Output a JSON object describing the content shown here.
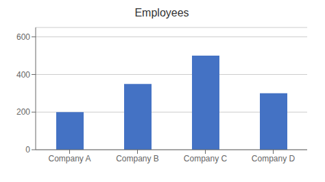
{
  "chart_data": {
    "type": "bar",
    "title": "Employees",
    "categories": [
      "Company A",
      "Company B",
      "Company C",
      "Company D"
    ],
    "values": [
      200,
      350,
      500,
      300
    ],
    "color": "#4472C4",
    "ylim": [
      0,
      650
    ],
    "yticks": [
      0,
      200,
      400,
      600
    ],
    "grid": true
  }
}
